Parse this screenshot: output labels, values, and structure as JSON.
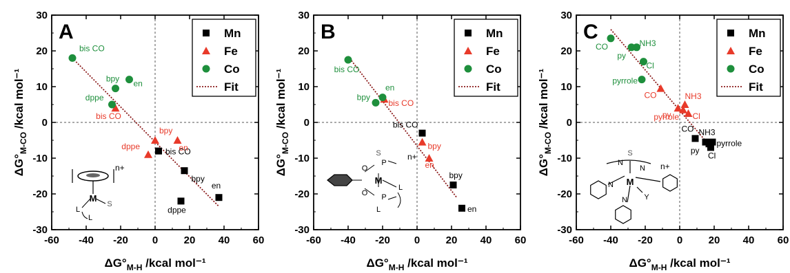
{
  "chart_data": [
    {
      "type": "scatter",
      "panel": "A",
      "xlabel": "ΔG°M-H /kcal mol⁻¹",
      "ylabel": "ΔG°M-CO /kcal mol⁻¹",
      "xlim": [
        -60,
        60
      ],
      "ylim": [
        -30,
        30
      ],
      "xticks": [
        -60,
        -40,
        -20,
        0,
        20,
        40,
        60
      ],
      "yticks": [
        -30,
        -20,
        -10,
        0,
        10,
        20,
        30
      ],
      "legend": [
        "Mn",
        "Fe",
        "Co",
        "Fit"
      ],
      "legend_position": "top-right",
      "fit": {
        "x": [
          -47,
          37
        ],
        "y": [
          17.5,
          -23.5
        ]
      },
      "series": [
        {
          "name": "Mn",
          "points": [
            {
              "x": 2,
              "y": -8,
              "label": "bis CO"
            },
            {
              "x": 17,
              "y": -13.5,
              "label": "bpy"
            },
            {
              "x": 15,
              "y": -22,
              "label": "dppe"
            },
            {
              "x": 37,
              "y": -21,
              "label": "en"
            }
          ]
        },
        {
          "name": "Fe",
          "points": [
            {
              "x": -23,
              "y": 4,
              "label": "bis CO"
            },
            {
              "x": 0,
              "y": -5,
              "label": "bpy"
            },
            {
              "x": -4,
              "y": -9,
              "label": "dppe"
            },
            {
              "x": 13,
              "y": -5,
              "label": "en"
            }
          ]
        },
        {
          "name": "Co",
          "points": [
            {
              "x": -48,
              "y": 18,
              "label": "bis CO"
            },
            {
              "x": -23,
              "y": 9.5,
              "label": "bpy"
            },
            {
              "x": -15,
              "y": 12,
              "label": "en"
            },
            {
              "x": -25,
              "y": 5,
              "label": "dppe"
            }
          ]
        }
      ]
    },
    {
      "type": "scatter",
      "panel": "B",
      "xlabel": "ΔG°M-H /kcal mol⁻¹",
      "ylabel": "ΔG°M-CO /kcal mol⁻¹",
      "xlim": [
        -60,
        60
      ],
      "ylim": [
        -30,
        30
      ],
      "xticks": [
        -60,
        -40,
        -20,
        0,
        20,
        40,
        60
      ],
      "yticks": [
        -30,
        -20,
        -10,
        0,
        10,
        20,
        30
      ],
      "legend": [
        "Mn",
        "Fe",
        "Co",
        "Fit"
      ],
      "legend_position": "top-right",
      "fit": {
        "x": [
          -40,
          23
        ],
        "y": [
          18.5,
          -21
        ]
      },
      "series": [
        {
          "name": "Mn",
          "points": [
            {
              "x": 3,
              "y": -3,
              "label": "bis CO"
            },
            {
              "x": 21,
              "y": -17.5,
              "label": "bpy"
            },
            {
              "x": 26,
              "y": -24,
              "label": "en"
            }
          ]
        },
        {
          "name": "Fe",
          "points": [
            {
              "x": -19,
              "y": 6.5,
              "label": "bis CO"
            },
            {
              "x": 3,
              "y": -5.5,
              "label": "bpy"
            },
            {
              "x": 7,
              "y": -10,
              "label": "en"
            }
          ]
        },
        {
          "name": "Co",
          "points": [
            {
              "x": -40,
              "y": 17.5,
              "label": "bis CO"
            },
            {
              "x": -20,
              "y": 7,
              "label": "en"
            },
            {
              "x": -24,
              "y": 5.5,
              "label": "bpy"
            }
          ]
        }
      ]
    },
    {
      "type": "scatter",
      "panel": "C",
      "xlabel": "ΔG°M-H /kcal mol⁻¹",
      "ylabel": "ΔG°M-CO /kcal mol⁻¹",
      "xlim": [
        -60,
        60
      ],
      "ylim": [
        -30,
        30
      ],
      "xticks": [
        -60,
        -40,
        -20,
        0,
        20,
        40,
        60
      ],
      "yticks": [
        -30,
        -20,
        -10,
        0,
        10,
        20,
        30
      ],
      "legend": [
        "Mn",
        "Fe",
        "Co",
        "Fit"
      ],
      "legend_position": "top-right",
      "fit": {
        "x": [
          -40,
          20
        ],
        "y": [
          26,
          -8
        ]
      },
      "series": [
        {
          "name": "Mn",
          "points": [
            {
              "x": 9,
              "y": -4.5,
              "label": "CO"
            },
            {
              "x": 15,
              "y": -5.5,
              "label": "NH3"
            },
            {
              "x": 17,
              "y": -6,
              "label": "py"
            },
            {
              "x": 18,
              "y": -7,
              "label": "Cl"
            },
            {
              "x": 19,
              "y": -5.5,
              "label": "pyrrole"
            }
          ]
        },
        {
          "name": "Fe",
          "points": [
            {
              "x": -11,
              "y": 9.5,
              "label": "CO"
            },
            {
              "x": -1,
              "y": 4,
              "label": "py"
            },
            {
              "x": 3,
              "y": 5,
              "label": "NH3"
            },
            {
              "x": 2,
              "y": 3.5,
              "label": "pyrrole"
            },
            {
              "x": 5,
              "y": 2.5,
              "label": "Cl"
            }
          ]
        },
        {
          "name": "Co",
          "points": [
            {
              "x": -40,
              "y": 23.5,
              "label": "CO"
            },
            {
              "x": -28,
              "y": 21,
              "label": "py"
            },
            {
              "x": -25,
              "y": 21,
              "label": "NH3"
            },
            {
              "x": -21,
              "y": 17,
              "label": "Cl"
            },
            {
              "x": -22,
              "y": 12,
              "label": "pyrrole"
            }
          ]
        }
      ]
    }
  ],
  "colors": {
    "Mn": "#000000",
    "Fe": "#e83a2a",
    "Co": "#1e8f3c",
    "Fit": "#8b1a1a"
  },
  "charge_label": "n+",
  "structure_labels": {
    "A": [
      "M",
      "L",
      "L",
      "S"
    ],
    "B": [
      "S",
      "P",
      "O",
      "M",
      "L",
      "O",
      "P",
      "L"
    ],
    "C": [
      "S",
      "N",
      "N",
      "M",
      "N",
      "N",
      "Y"
    ]
  }
}
